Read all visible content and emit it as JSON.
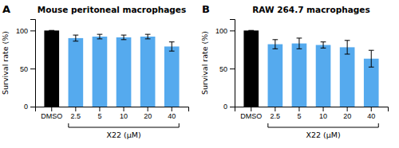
{
  "chart_data": [
    {
      "type": "bar",
      "title": "Mouse peritoneal macrophages",
      "categories": [
        "DMSO",
        "2.5",
        "5",
        "10",
        "20",
        "40"
      ],
      "values": [
        100,
        90,
        92,
        91,
        92,
        79
      ],
      "errors": [
        0,
        4,
        3,
        3,
        3,
        6
      ],
      "colors": [
        "#000000",
        "#55aaee",
        "#55aaee",
        "#55aaee",
        "#55aaee",
        "#55aaee"
      ],
      "ylabel": "Survival rate (%)",
      "xlabel": "X22 (μM)",
      "ylim": [
        0,
        115
      ],
      "yticks": [
        0,
        50,
        100
      ],
      "annotations": [
        "A"
      ]
    },
    {
      "type": "bar",
      "title": "RAW 264.7 macrophages",
      "categories": [
        "DMSO",
        "2.5",
        "5",
        "10",
        "20",
        "40"
      ],
      "values": [
        100,
        82,
        83,
        81,
        78,
        63
      ],
      "errors": [
        0,
        6,
        7,
        4,
        9,
        11
      ],
      "colors": [
        "#000000",
        "#55aaee",
        "#55aaee",
        "#55aaee",
        "#55aaee",
        "#55aaee"
      ],
      "ylabel": "Survival rate (%)",
      "xlabel": "X22 (μM)",
      "ylim": [
        0,
        115
      ],
      "yticks": [
        0,
        50,
        100
      ],
      "annotations": [
        "B"
      ]
    }
  ]
}
